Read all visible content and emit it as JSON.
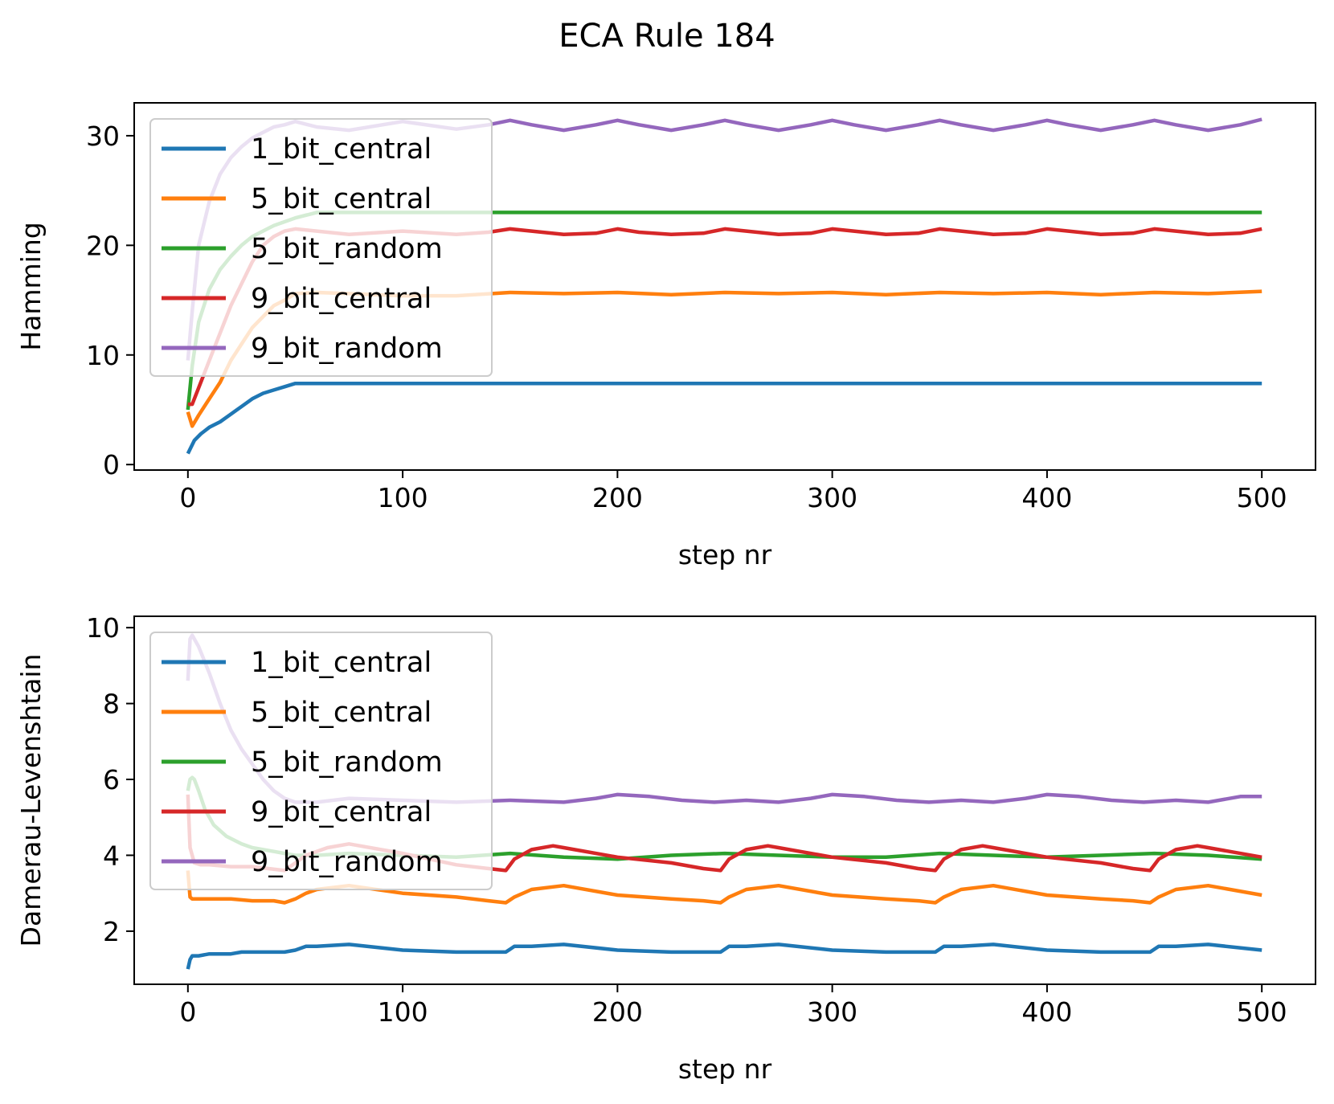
{
  "figure_title": "ECA Rule 184",
  "chart_data": [
    {
      "type": "line",
      "title": "",
      "xlabel": "step nr",
      "ylabel": "Hamming",
      "xlim": [
        -25,
        525
      ],
      "ylim": [
        -0.5,
        33
      ],
      "xticks": [
        0,
        100,
        200,
        300,
        400,
        500
      ],
      "yticks": [
        0,
        10,
        20,
        30
      ],
      "legend": "upper-left",
      "series": [
        {
          "name": "1_bit_central",
          "color": "#1f77b4",
          "x": [
            0,
            3,
            6,
            10,
            15,
            20,
            25,
            30,
            35,
            40,
            45,
            50,
            60,
            100,
            200,
            300,
            400,
            500
          ],
          "y": [
            1,
            2.2,
            2.8,
            3.4,
            3.9,
            4.6,
            5.3,
            6.0,
            6.5,
            6.8,
            7.1,
            7.4,
            7.4,
            7.4,
            7.4,
            7.4,
            7.4,
            7.4
          ]
        },
        {
          "name": "5_bit_central",
          "color": "#ff7f0e",
          "x": [
            0,
            2,
            5,
            10,
            15,
            20,
            25,
            30,
            35,
            40,
            45,
            50,
            60,
            75,
            100,
            125,
            150,
            175,
            200,
            225,
            250,
            275,
            300,
            325,
            350,
            375,
            400,
            425,
            450,
            475,
            500
          ],
          "y": [
            4.8,
            3.5,
            4.5,
            6.0,
            7.5,
            9.5,
            11.0,
            12.5,
            13.5,
            14.5,
            15.0,
            15.6,
            15.7,
            15.6,
            15.4,
            15.4,
            15.7,
            15.6,
            15.7,
            15.5,
            15.7,
            15.6,
            15.7,
            15.5,
            15.7,
            15.6,
            15.7,
            15.5,
            15.7,
            15.6,
            15.8
          ]
        },
        {
          "name": "5_bit_random",
          "color": "#2ca02c",
          "x": [
            0,
            2,
            5,
            10,
            15,
            20,
            25,
            30,
            40,
            50,
            60,
            80,
            100,
            200,
            300,
            400,
            500
          ],
          "y": [
            5,
            9,
            13,
            16,
            17.8,
            19.0,
            20.0,
            20.8,
            21.8,
            22.5,
            23,
            23,
            23,
            23,
            23,
            23,
            23
          ]
        },
        {
          "name": "9_bit_central",
          "color": "#d62728",
          "x": [
            0,
            2,
            5,
            10,
            15,
            20,
            25,
            30,
            35,
            40,
            45,
            50,
            60,
            75,
            100,
            125,
            140,
            150,
            160,
            175,
            190,
            200,
            210,
            225,
            240,
            250,
            260,
            275,
            290,
            300,
            310,
            325,
            340,
            350,
            360,
            375,
            390,
            400,
            410,
            425,
            440,
            450,
            460,
            475,
            490,
            500
          ],
          "y": [
            5.5,
            5.5,
            7,
            9.5,
            12,
            14.5,
            16.5,
            18.5,
            20,
            20.8,
            21.3,
            21.5,
            21.3,
            21.0,
            21.3,
            21.0,
            21.2,
            21.5,
            21.3,
            21.0,
            21.1,
            21.5,
            21.2,
            21.0,
            21.1,
            21.5,
            21.3,
            21.0,
            21.1,
            21.5,
            21.3,
            21.0,
            21.1,
            21.5,
            21.3,
            21.0,
            21.1,
            21.5,
            21.3,
            21.0,
            21.1,
            21.5,
            21.3,
            21.0,
            21.1,
            21.5
          ]
        },
        {
          "name": "9_bit_random",
          "color": "#9467bd",
          "x": [
            0,
            2,
            5,
            10,
            15,
            20,
            25,
            30,
            35,
            40,
            45,
            50,
            60,
            75,
            100,
            125,
            140,
            150,
            160,
            175,
            190,
            200,
            210,
            225,
            240,
            250,
            260,
            275,
            290,
            300,
            310,
            325,
            340,
            350,
            360,
            375,
            390,
            400,
            410,
            425,
            440,
            450,
            460,
            475,
            490,
            500
          ],
          "y": [
            9.5,
            14,
            20,
            24,
            26.5,
            28,
            29,
            29.8,
            30.3,
            30.8,
            31.0,
            31.3,
            30.8,
            30.5,
            31.3,
            30.6,
            31.0,
            31.4,
            31.0,
            30.5,
            31.0,
            31.4,
            31.0,
            30.5,
            31.0,
            31.4,
            31.0,
            30.5,
            31.0,
            31.4,
            31.0,
            30.5,
            31.0,
            31.4,
            31.0,
            30.5,
            31.0,
            31.4,
            31.0,
            30.5,
            31.0,
            31.4,
            31.0,
            30.5,
            31.0,
            31.5
          ]
        }
      ]
    },
    {
      "type": "line",
      "title": "",
      "xlabel": "step nr",
      "ylabel": "Damerau-Levenshtain",
      "xlim": [
        -25,
        525
      ],
      "ylim": [
        0.6,
        10.3
      ],
      "xticks": [
        0,
        100,
        200,
        300,
        400,
        500
      ],
      "yticks": [
        2,
        4,
        6,
        8,
        10
      ],
      "legend": "upper-left",
      "series": [
        {
          "name": "1_bit_central",
          "color": "#1f77b4",
          "x": [
            0,
            1,
            2,
            5,
            10,
            15,
            20,
            25,
            30,
            35,
            40,
            45,
            50,
            55,
            60,
            75,
            100,
            125,
            140,
            148,
            152,
            160,
            175,
            200,
            225,
            240,
            248,
            252,
            260,
            275,
            300,
            325,
            340,
            348,
            352,
            360,
            375,
            400,
            425,
            440,
            448,
            452,
            460,
            475,
            500
          ],
          "y": [
            1.0,
            1.25,
            1.35,
            1.35,
            1.4,
            1.4,
            1.4,
            1.45,
            1.45,
            1.45,
            1.45,
            1.45,
            1.5,
            1.6,
            1.6,
            1.65,
            1.5,
            1.45,
            1.45,
            1.45,
            1.6,
            1.6,
            1.65,
            1.5,
            1.45,
            1.45,
            1.45,
            1.6,
            1.6,
            1.65,
            1.5,
            1.45,
            1.45,
            1.45,
            1.6,
            1.6,
            1.65,
            1.5,
            1.45,
            1.45,
            1.45,
            1.6,
            1.6,
            1.65,
            1.5
          ]
        },
        {
          "name": "5_bit_central",
          "color": "#ff7f0e",
          "x": [
            0,
            1,
            2,
            5,
            10,
            20,
            30,
            40,
            45,
            50,
            55,
            60,
            75,
            100,
            125,
            140,
            148,
            152,
            160,
            175,
            200,
            225,
            240,
            248,
            252,
            260,
            275,
            300,
            325,
            340,
            348,
            352,
            360,
            375,
            400,
            425,
            440,
            448,
            452,
            460,
            475,
            500
          ],
          "y": [
            3.6,
            2.9,
            2.85,
            2.85,
            2.85,
            2.85,
            2.8,
            2.8,
            2.75,
            2.85,
            3.0,
            3.1,
            3.2,
            3.0,
            2.9,
            2.8,
            2.75,
            2.9,
            3.1,
            3.2,
            2.95,
            2.85,
            2.8,
            2.75,
            2.9,
            3.1,
            3.2,
            2.95,
            2.85,
            2.8,
            2.75,
            2.9,
            3.1,
            3.2,
            2.95,
            2.85,
            2.8,
            2.75,
            2.9,
            3.1,
            3.2,
            2.95
          ]
        },
        {
          "name": "5_bit_random",
          "color": "#2ca02c",
          "x": [
            0,
            1,
            2,
            3,
            5,
            8,
            12,
            18,
            25,
            30,
            35,
            40,
            45,
            50,
            60,
            75,
            100,
            125,
            150,
            175,
            200,
            225,
            250,
            275,
            300,
            325,
            350,
            375,
            400,
            425,
            450,
            475,
            500
          ],
          "y": [
            5.7,
            6.0,
            6.05,
            6.0,
            5.7,
            5.2,
            4.8,
            4.5,
            4.3,
            4.2,
            4.15,
            4.1,
            4.05,
            4.0,
            4.0,
            4.05,
            4.0,
            3.95,
            4.05,
            3.95,
            3.9,
            4.0,
            4.05,
            4.0,
            3.95,
            3.95,
            4.05,
            4.0,
            3.95,
            4.0,
            4.05,
            4.0,
            3.9
          ]
        },
        {
          "name": "9_bit_central",
          "color": "#d62728",
          "x": [
            0,
            1,
            3,
            6,
            10,
            20,
            30,
            45,
            50,
            55,
            65,
            75,
            100,
            125,
            140,
            148,
            152,
            160,
            170,
            175,
            200,
            225,
            240,
            248,
            252,
            260,
            270,
            275,
            300,
            325,
            340,
            348,
            352,
            360,
            370,
            375,
            400,
            425,
            440,
            448,
            452,
            460,
            470,
            475,
            500
          ],
          "y": [
            5.6,
            4.2,
            3.8,
            3.75,
            3.75,
            3.7,
            3.7,
            3.6,
            3.8,
            4.0,
            4.2,
            4.3,
            4.05,
            3.75,
            3.65,
            3.6,
            3.9,
            4.15,
            4.25,
            4.2,
            3.95,
            3.8,
            3.65,
            3.6,
            3.9,
            4.15,
            4.25,
            4.2,
            3.95,
            3.8,
            3.65,
            3.6,
            3.9,
            4.15,
            4.25,
            4.2,
            3.95,
            3.8,
            3.65,
            3.6,
            3.9,
            4.15,
            4.25,
            4.2,
            3.95
          ]
        },
        {
          "name": "9_bit_random",
          "color": "#9467bd",
          "x": [
            0,
            1,
            2,
            5,
            10,
            15,
            20,
            25,
            30,
            35,
            40,
            45,
            50,
            60,
            75,
            100,
            125,
            150,
            175,
            190,
            200,
            215,
            230,
            245,
            260,
            275,
            290,
            300,
            315,
            330,
            345,
            360,
            375,
            390,
            400,
            415,
            430,
            445,
            460,
            475,
            490,
            500
          ],
          "y": [
            8.6,
            9.7,
            9.8,
            9.5,
            8.8,
            8.0,
            7.3,
            6.8,
            6.4,
            6.0,
            5.7,
            5.5,
            5.4,
            5.4,
            5.5,
            5.45,
            5.4,
            5.45,
            5.4,
            5.5,
            5.6,
            5.55,
            5.45,
            5.4,
            5.45,
            5.4,
            5.5,
            5.6,
            5.55,
            5.45,
            5.4,
            5.45,
            5.4,
            5.5,
            5.6,
            5.55,
            5.45,
            5.4,
            5.45,
            5.4,
            5.55,
            5.55
          ]
        }
      ]
    }
  ]
}
